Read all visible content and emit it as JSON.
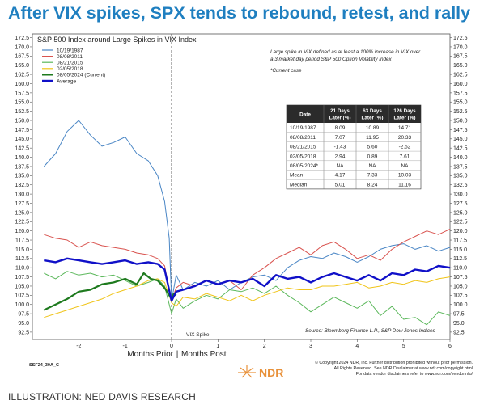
{
  "headline": "After VIX spikes, SPX tends to rebound, retest, and rally",
  "caption": "ILLUSTRATION: NED DAVIS RESEARCH",
  "code": "SSF24_30A_C",
  "logo_text": "NDR",
  "copyright": [
    "© Copyright 2024 NDR, Inc. Further distribution prohibited without prior permission.",
    "All Rights Reserved. See NDR Disclaimer at www.ndr.com/copyright.html",
    "For data vendor disclaimers refer to www.ndr.com/vendorinfo/"
  ],
  "chart_data": {
    "type": "line",
    "title": "S&P 500 Index around Large Spikes in VIX Index",
    "xlabel_left": "Months Prior",
    "xlabel_right": "Months Post",
    "xlim": [
      -3,
      6
    ],
    "ylim": [
      90.5,
      173.5
    ],
    "y_ticks": [
      92.5,
      95.0,
      97.5,
      100.0,
      102.5,
      105.0,
      107.5,
      110.0,
      112.5,
      115.0,
      117.5,
      120.0,
      122.5,
      125.0,
      127.5,
      130.0,
      132.5,
      135.0,
      137.5,
      140.0,
      142.5,
      145.0,
      147.5,
      150.0,
      152.5,
      155.0,
      157.5,
      160.0,
      162.5,
      165.0,
      167.5,
      170.0,
      172.5
    ],
    "y_tick_labels": [
      "92.5",
      "95.0",
      "97.5",
      "100.0",
      "102.5",
      "105.0",
      "107.5",
      "110.0",
      "112.5",
      "115.0",
      "117.5",
      "120.0",
      "122.5",
      "125.0",
      "127.5",
      "130.0",
      "132.5",
      "135.0",
      "137.5",
      "140.0",
      "142.5",
      "145.0",
      "147.5",
      "150.0",
      "152.5",
      "155.0",
      "157.5",
      "160.0",
      "162.5",
      "165.0",
      "167.5",
      "170.0",
      "172.5"
    ],
    "x_ticks": [
      -2,
      -1,
      0,
      1,
      2,
      3,
      4,
      5,
      6
    ],
    "x_tick_labels": [
      "-2",
      "-1",
      "0",
      "1",
      "2",
      "3",
      "4",
      "5",
      "6"
    ],
    "note_lines": [
      "Large spike in VIX defined as at least a 100% increase in VIX over",
      "a 3 market day period S&P 500 Option Volatility Index"
    ],
    "note_current": "*Current case",
    "spike_label": "VIX Spike",
    "source": "Source: Bloomberg Finance L.P., S&P Dow Jones Indices",
    "series": [
      {
        "name": "10/19/1987",
        "color": "#4a86c5",
        "width": 1,
        "x": [
          -2.75,
          -2.5,
          -2.25,
          -2.0,
          -1.75,
          -1.5,
          -1.25,
          -1.0,
          -0.75,
          -0.5,
          -0.3,
          -0.15,
          -0.05,
          0.0,
          0.1,
          0.25,
          0.5,
          0.75,
          1.0,
          1.25,
          1.5,
          1.75,
          2.0,
          2.25,
          2.5,
          2.75,
          3.0,
          3.25,
          3.5,
          3.75,
          4.0,
          4.25,
          4.5,
          4.75,
          5.0,
          5.25,
          5.5,
          5.75,
          6.0
        ],
        "y": [
          137.5,
          141.0,
          147.0,
          150.0,
          146.0,
          143.0,
          144.0,
          145.5,
          141.0,
          139.0,
          135.0,
          128.0,
          118.0,
          101.0,
          108.0,
          104.0,
          106.0,
          105.0,
          106.5,
          104.0,
          106.0,
          107.5,
          108.0,
          106.5,
          110.0,
          112.0,
          113.0,
          112.5,
          114.0,
          113.0,
          111.5,
          113.0,
          115.0,
          116.0,
          116.5,
          115.0,
          116.0,
          114.5,
          115.5
        ]
      },
      {
        "name": "08/08/2011",
        "color": "#d9534f",
        "width": 1,
        "x": [
          -2.75,
          -2.5,
          -2.25,
          -2.0,
          -1.75,
          -1.5,
          -1.25,
          -1.0,
          -0.75,
          -0.5,
          -0.3,
          -0.15,
          0.0,
          0.1,
          0.25,
          0.5,
          0.75,
          1.0,
          1.25,
          1.5,
          1.75,
          2.0,
          2.25,
          2.5,
          2.75,
          3.0,
          3.25,
          3.5,
          3.75,
          4.0,
          4.25,
          4.5,
          4.75,
          5.0,
          5.25,
          5.5,
          5.75,
          6.0
        ],
        "y": [
          119.0,
          118.0,
          117.5,
          115.5,
          117.0,
          116.0,
          115.5,
          115.0,
          114.0,
          113.5,
          112.5,
          110.5,
          101.0,
          104.5,
          106.0,
          105.0,
          106.5,
          105.5,
          106.5,
          104.0,
          108.0,
          110.0,
          112.5,
          114.0,
          115.5,
          113.5,
          116.0,
          117.0,
          115.0,
          112.5,
          113.5,
          112.0,
          115.0,
          117.0,
          118.5,
          120.0,
          119.0,
          120.5
        ]
      },
      {
        "name": "08/21/2015",
        "color": "#5cb85c",
        "width": 1,
        "x": [
          -2.75,
          -2.5,
          -2.25,
          -2.0,
          -1.75,
          -1.5,
          -1.25,
          -1.0,
          -0.75,
          -0.5,
          -0.3,
          -0.15,
          0.0,
          0.1,
          0.25,
          0.5,
          0.75,
          1.0,
          1.25,
          1.5,
          1.75,
          2.0,
          2.25,
          2.5,
          2.75,
          3.0,
          3.25,
          3.5,
          3.75,
          4.0,
          4.25,
          4.5,
          4.75,
          5.0,
          5.25,
          5.5,
          5.75,
          6.0
        ],
        "y": [
          108.5,
          107.0,
          109.0,
          108.0,
          108.5,
          107.5,
          108.0,
          106.5,
          105.0,
          106.0,
          107.0,
          105.0,
          97.5,
          101.5,
          99.0,
          101.0,
          102.5,
          101.5,
          104.0,
          103.5,
          104.5,
          103.0,
          105.0,
          102.5,
          100.5,
          98.0,
          100.0,
          102.0,
          100.5,
          99.0,
          101.0,
          97.0,
          99.5,
          96.0,
          96.5,
          94.5,
          98.0,
          97.0
        ]
      },
      {
        "name": "02/05/2018",
        "color": "#f0c419",
        "width": 1,
        "x": [
          -2.75,
          -2.5,
          -2.25,
          -2.0,
          -1.75,
          -1.5,
          -1.25,
          -1.0,
          -0.75,
          -0.5,
          -0.3,
          -0.15,
          0.0,
          0.1,
          0.25,
          0.5,
          0.75,
          1.0,
          1.25,
          1.5,
          1.75,
          2.0,
          2.25,
          2.5,
          2.75,
          3.0,
          3.25,
          3.5,
          3.75,
          4.0,
          4.25,
          4.5,
          4.75,
          5.0,
          5.25,
          5.5,
          5.75,
          6.0
        ],
        "y": [
          96.5,
          97.5,
          98.5,
          99.5,
          100.5,
          101.5,
          103.0,
          104.0,
          105.0,
          106.5,
          107.0,
          106.0,
          100.5,
          99.5,
          102.0,
          101.5,
          103.0,
          102.0,
          101.0,
          102.5,
          101.0,
          102.5,
          103.5,
          104.5,
          104.0,
          104.0,
          105.0,
          105.0,
          105.5,
          106.0,
          104.5,
          105.0,
          106.0,
          105.5,
          106.5,
          106.0,
          107.0,
          107.5
        ]
      },
      {
        "name": "08/05/2024 (Current)",
        "color": "#1e7a1e",
        "width": 2.2,
        "x": [
          -2.75,
          -2.5,
          -2.25,
          -2.0,
          -1.75,
          -1.5,
          -1.25,
          -1.0,
          -0.75,
          -0.6,
          -0.45,
          -0.3,
          -0.15,
          0.0,
          0.05,
          0.1
        ],
        "y": [
          98.5,
          100.0,
          101.5,
          103.5,
          104.0,
          105.5,
          106.0,
          107.0,
          105.5,
          108.5,
          107.0,
          106.5,
          104.5,
          101.5,
          103.0,
          102.5
        ]
      },
      {
        "name": "Average",
        "color": "#1010c8",
        "width": 2.4,
        "x": [
          -2.75,
          -2.5,
          -2.25,
          -2.0,
          -1.75,
          -1.5,
          -1.25,
          -1.0,
          -0.75,
          -0.5,
          -0.3,
          -0.15,
          0.0,
          0.1,
          0.25,
          0.5,
          0.75,
          1.0,
          1.25,
          1.5,
          1.75,
          2.0,
          2.25,
          2.5,
          2.75,
          3.0,
          3.25,
          3.5,
          3.75,
          4.0,
          4.25,
          4.5,
          4.75,
          5.0,
          5.25,
          5.5,
          5.75,
          6.0
        ],
        "y": [
          112.0,
          111.5,
          112.5,
          112.0,
          111.5,
          111.0,
          111.5,
          112.0,
          111.0,
          111.5,
          111.0,
          109.5,
          101.0,
          103.5,
          104.0,
          105.0,
          106.5,
          105.5,
          106.5,
          106.0,
          107.0,
          105.0,
          108.0,
          107.0,
          107.5,
          106.0,
          107.5,
          108.5,
          107.5,
          106.5,
          108.0,
          106.5,
          108.5,
          108.0,
          109.5,
          109.0,
          110.5,
          110.0
        ]
      }
    ],
    "table": {
      "headers": [
        "Date",
        "21 Days Later (%)",
        "63 Days Later (%)",
        "126 Days Later (%)"
      ],
      "rows": [
        [
          "10/19/1987",
          "8.09",
          "10.89",
          "14.71"
        ],
        [
          "08/08/2011",
          "7.07",
          "11.95",
          "20.33"
        ],
        [
          "08/21/2015",
          "-1.43",
          "5.60",
          "-2.52"
        ],
        [
          "02/05/2018",
          "2.94",
          "0.89",
          "7.61"
        ],
        [
          "08/05/2024*",
          "NA",
          "NA",
          "NA"
        ],
        [
          "Mean",
          "4.17",
          "7.33",
          "10.03"
        ],
        [
          "Median",
          "5.01",
          "8.24",
          "11.16"
        ]
      ]
    }
  }
}
